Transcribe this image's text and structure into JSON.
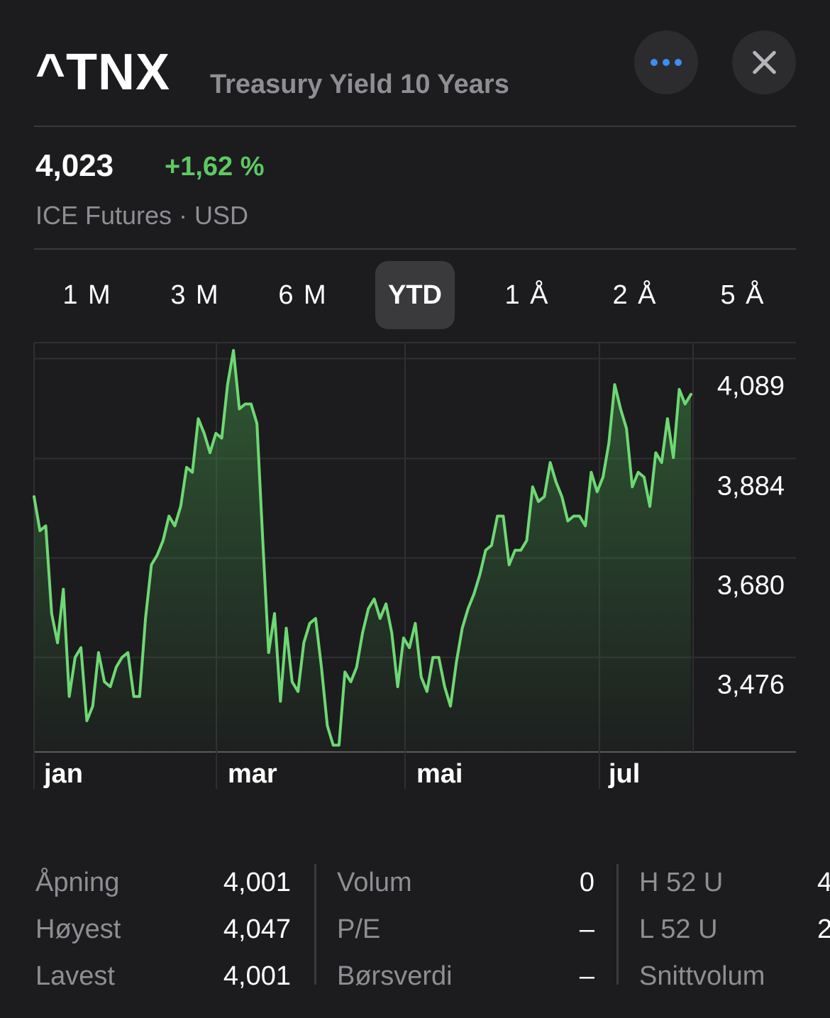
{
  "header": {
    "symbol": "^TNX",
    "name": "Treasury Yield 10 Years",
    "more_icon": "ellipsis-icon",
    "close_icon": "close-icon"
  },
  "quote": {
    "price": "4,023",
    "change": "+1,62 %",
    "exchange": "ICE Futures · USD",
    "change_color": "#5fc864"
  },
  "ranges": [
    "1 M",
    "3 M",
    "6 M",
    "YTD",
    "1 Å",
    "2 Å",
    "5 Å"
  ],
  "selected_range": "YTD",
  "chart_data": {
    "type": "area",
    "y_tick_labels": [
      "4,089",
      "3,884",
      "3,680",
      "3,476"
    ],
    "y_ticks": [
      4.089,
      3.884,
      3.68,
      3.476
    ],
    "x_tick_labels": [
      "jan",
      "mar",
      "mai",
      "jul"
    ],
    "ylim": [
      3.276,
      4.116
    ],
    "line_color": "#6ed873",
    "values": [
      3.8,
      3.73,
      3.74,
      3.56,
      3.5,
      3.61,
      3.39,
      3.47,
      3.49,
      3.34,
      3.37,
      3.48,
      3.42,
      3.41,
      3.45,
      3.47,
      3.48,
      3.39,
      3.39,
      3.55,
      3.66,
      3.68,
      3.71,
      3.76,
      3.74,
      3.78,
      3.86,
      3.85,
      3.96,
      3.93,
      3.89,
      3.93,
      3.92,
      4.03,
      4.1,
      3.98,
      3.99,
      3.99,
      3.95,
      3.71,
      3.48,
      3.56,
      3.38,
      3.53,
      3.42,
      3.4,
      3.5,
      3.54,
      3.55,
      3.45,
      3.33,
      3.29,
      3.29,
      3.44,
      3.42,
      3.45,
      3.52,
      3.57,
      3.59,
      3.55,
      3.58,
      3.52,
      3.41,
      3.51,
      3.49,
      3.54,
      3.43,
      3.4,
      3.47,
      3.47,
      3.41,
      3.37,
      3.46,
      3.53,
      3.57,
      3.6,
      3.64,
      3.69,
      3.7,
      3.76,
      3.76,
      3.66,
      3.69,
      3.69,
      3.71,
      3.82,
      3.79,
      3.8,
      3.87,
      3.83,
      3.8,
      3.75,
      3.76,
      3.76,
      3.74,
      3.85,
      3.81,
      3.84,
      3.91,
      4.03,
      3.98,
      3.94,
      3.82,
      3.85,
      3.84,
      3.78,
      3.89,
      3.87,
      3.96,
      3.88,
      4.02,
      3.99,
      4.01
    ]
  },
  "stats": {
    "col1": [
      {
        "label": "Åpning",
        "value": "4,001"
      },
      {
        "label": "Høyest",
        "value": "4,047"
      },
      {
        "label": "Lavest",
        "value": "4,001"
      }
    ],
    "col2": [
      {
        "label": "Volum",
        "value": "0"
      },
      {
        "label": "P/E",
        "value": "–"
      },
      {
        "label": "Børsverdi",
        "value": "–"
      }
    ],
    "col3": [
      {
        "label": "H 52 U",
        "value": "4"
      },
      {
        "label": "L 52 U",
        "value": "2"
      },
      {
        "label": "Snittvolum",
        "value": ""
      }
    ]
  }
}
